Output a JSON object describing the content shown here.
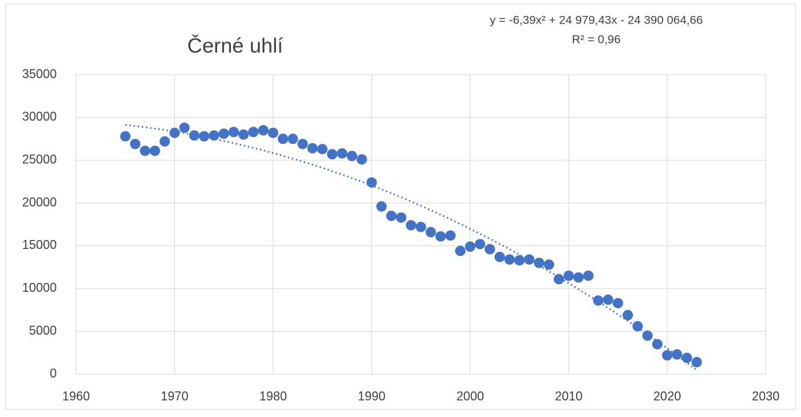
{
  "chart_data": {
    "type": "scatter",
    "title": "Černé uhlí",
    "annotations": [
      "y = -6,39x² + 24 979,43x - 24 390 064,66",
      "R² = 0,96"
    ],
    "x": [
      1965,
      1966,
      1967,
      1968,
      1969,
      1970,
      1971,
      1972,
      1973,
      1974,
      1975,
      1976,
      1977,
      1978,
      1979,
      1980,
      1981,
      1982,
      1983,
      1984,
      1985,
      1986,
      1987,
      1988,
      1989,
      1990,
      1991,
      1992,
      1993,
      1994,
      1995,
      1996,
      1997,
      1998,
      1999,
      2000,
      2001,
      2002,
      2003,
      2004,
      2005,
      2006,
      2007,
      2008,
      2009,
      2010,
      2011,
      2012,
      2013,
      2014,
      2015,
      2016,
      2017,
      2018,
      2019,
      2020,
      2021,
      2022,
      2023
    ],
    "values": [
      27800,
      26900,
      26100,
      26100,
      27200,
      28200,
      28800,
      27900,
      27800,
      27900,
      28100,
      28300,
      28000,
      28300,
      28500,
      28200,
      27500,
      27500,
      26900,
      26400,
      26300,
      25700,
      25800,
      25500,
      25100,
      22400,
      19600,
      18500,
      18300,
      17400,
      17200,
      16600,
      16100,
      16200,
      14400,
      14900,
      15200,
      14600,
      13700,
      13400,
      13300,
      13400,
      13000,
      12800,
      11100,
      11500,
      11300,
      11500,
      8600,
      8700,
      8300,
      6900,
      5600,
      4500,
      3500,
      2200,
      2300,
      1900,
      1400
    ],
    "color": "#4472c4",
    "trendline": "polynomial",
    "xlim": [
      1960,
      2030
    ],
    "xticks": [
      1960,
      1970,
      1980,
      1990,
      2000,
      2010,
      2020,
      2030
    ],
    "ylim": [
      0,
      35000
    ],
    "yticks": [
      0,
      5000,
      10000,
      15000,
      20000,
      25000,
      30000,
      35000
    ],
    "grid": true
  }
}
